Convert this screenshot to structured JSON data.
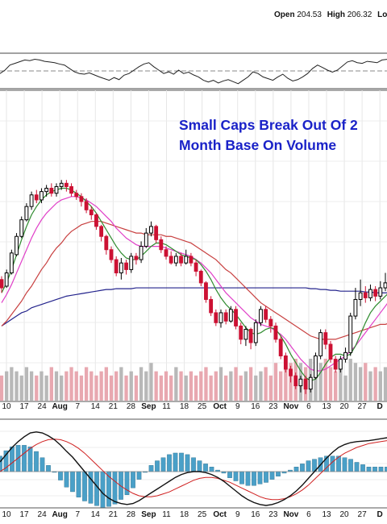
{
  "header": {
    "open_label": "Open",
    "open_value": "204.53",
    "high_label": "High",
    "high_value": "206.32",
    "low_label": "Lo"
  },
  "annotation": {
    "line1": "Small Caps Break Out Of 2",
    "line2": "Month Base On Volume"
  },
  "colors": {
    "up_candle": "#000000",
    "down_candle": "#cc1133",
    "ma_green": "#2e8b2e",
    "ma_magenta": "#e040c8",
    "ma_red": "#c84040",
    "ma_blue": "#23238c",
    "volume_up": "#b8b8b8",
    "volume_down": "#e8a8b0",
    "macd_hist": "#4aa0c8",
    "macd_line": "#111111",
    "signal_line": "#d02020",
    "annotation": "#1a22c8"
  },
  "chart_data": {
    "type": "candlestick",
    "x_ticks": [
      "10",
      "17",
      "24",
      "Aug",
      "7",
      "14",
      "21",
      "28",
      "Sep",
      "11",
      "18",
      "25",
      "Oct",
      "9",
      "16",
      "23",
      "Nov",
      "6",
      "13",
      "20",
      "27",
      "D"
    ],
    "month_tick_indices": [
      3,
      8,
      12,
      16,
      21
    ],
    "candles": [
      {
        "o": 1,
        "c": 0.5,
        "h": 1.2,
        "l": 0.2
      },
      {
        "o": 0.6,
        "c": 1.4,
        "h": 1.6,
        "l": 0.5
      },
      {
        "o": 1.4,
        "c": 2.6,
        "h": 2.8,
        "l": 1.3
      },
      {
        "o": 2.5,
        "c": 3.6,
        "h": 3.8,
        "l": 2.4
      },
      {
        "o": 3.6,
        "c": 4.6,
        "h": 4.8,
        "l": 3.5
      },
      {
        "o": 4.6,
        "c": 5.4,
        "h": 5.6,
        "l": 4.5
      },
      {
        "o": 5.4,
        "c": 6.1,
        "h": 6.3,
        "l": 5.2
      },
      {
        "o": 6.1,
        "c": 5.8,
        "h": 6.4,
        "l": 5.6
      },
      {
        "o": 5.8,
        "c": 6.3,
        "h": 6.5,
        "l": 5.6
      },
      {
        "o": 6.3,
        "c": 6.5,
        "h": 6.7,
        "l": 6
      },
      {
        "o": 6.5,
        "c": 6.2,
        "h": 6.8,
        "l": 6
      },
      {
        "o": 6.2,
        "c": 6.6,
        "h": 6.8,
        "l": 6
      },
      {
        "o": 6.6,
        "c": 6.8,
        "h": 7.0,
        "l": 6.4
      },
      {
        "o": 6.8,
        "c": 6.6,
        "h": 7.0,
        "l": 6.3
      },
      {
        "o": 6.6,
        "c": 6.2,
        "h": 6.8,
        "l": 6.0
      },
      {
        "o": 6.2,
        "c": 6.0,
        "h": 6.4,
        "l": 5.8
      },
      {
        "o": 6.0,
        "c": 5.7,
        "h": 6.2,
        "l": 5.4
      },
      {
        "o": 5.7,
        "c": 5.2,
        "h": 5.9,
        "l": 5.0
      },
      {
        "o": 5.2,
        "c": 4.9,
        "h": 5.4,
        "l": 4.6
      },
      {
        "o": 4.9,
        "c": 4.2,
        "h": 5.0,
        "l": 4.0
      },
      {
        "o": 4.2,
        "c": 3.6,
        "h": 4.3,
        "l": 3.3
      },
      {
        "o": 3.6,
        "c": 2.8,
        "h": 3.7,
        "l": 2.5
      },
      {
        "o": 2.8,
        "c": 2.2,
        "h": 3.0,
        "l": 2.0
      },
      {
        "o": 2.2,
        "c": 1.4,
        "h": 2.4,
        "l": 1.2
      },
      {
        "o": 1.4,
        "c": 2.0,
        "h": 2.3,
        "l": 1.0
      },
      {
        "o": 2.0,
        "c": 1.6,
        "h": 2.2,
        "l": 1.3
      },
      {
        "o": 1.6,
        "c": 2.4,
        "h": 2.6,
        "l": 1.4
      },
      {
        "o": 2.4,
        "c": 2.2,
        "h": 2.6,
        "l": 1.9
      },
      {
        "o": 2.2,
        "c": 3.0,
        "h": 3.3,
        "l": 2.0
      },
      {
        "o": 3.0,
        "c": 3.8,
        "h": 4.1,
        "l": 2.9
      },
      {
        "o": 3.8,
        "c": 4.2,
        "h": 4.5,
        "l": 3.6
      },
      {
        "o": 4.2,
        "c": 3.4,
        "h": 4.3,
        "l": 3.2
      },
      {
        "o": 3.4,
        "c": 2.8,
        "h": 3.6,
        "l": 2.6
      },
      {
        "o": 2.8,
        "c": 2.4,
        "h": 3.0,
        "l": 2.2
      },
      {
        "o": 2.4,
        "c": 2.0,
        "h": 2.7,
        "l": 1.9
      },
      {
        "o": 2.0,
        "c": 2.4,
        "h": 2.6,
        "l": 1.8
      },
      {
        "o": 2.4,
        "c": 2.0,
        "h": 2.6,
        "l": 1.8
      },
      {
        "o": 2.0,
        "c": 2.4,
        "h": 2.8,
        "l": 1.9
      },
      {
        "o": 2.4,
        "c": 2.0,
        "h": 2.6,
        "l": 1.8
      },
      {
        "o": 2.0,
        "c": 1.5,
        "h": 2.2,
        "l": 1.2
      },
      {
        "o": 1.5,
        "c": 0.8,
        "h": 1.6,
        "l": 0.6
      },
      {
        "o": 0.8,
        "c": -0.2,
        "h": 0.9,
        "l": -0.4
      },
      {
        "o": -0.2,
        "c": -1.0,
        "h": 0,
        "l": -1.2
      },
      {
        "o": -1.0,
        "c": -1.6,
        "h": -0.8,
        "l": -1.8
      },
      {
        "o": -1.6,
        "c": -1.0,
        "h": -0.8,
        "l": -1.9
      },
      {
        "o": -1.0,
        "c": -1.5,
        "h": -0.8,
        "l": -1.7
      },
      {
        "o": -1.5,
        "c": -0.8,
        "h": -0.6,
        "l": -1.6
      },
      {
        "o": -0.8,
        "c": -1.8,
        "h": -0.6,
        "l": -2.0
      },
      {
        "o": -1.8,
        "c": -2.6,
        "h": -1.6,
        "l": -2.9
      },
      {
        "o": -2.6,
        "c": -2.0,
        "h": -1.8,
        "l": -3.0
      },
      {
        "o": -2.0,
        "c": -2.8,
        "h": -1.9,
        "l": -3.2
      },
      {
        "o": -2.8,
        "c": -1.6,
        "h": -1.4,
        "l": -3.0
      },
      {
        "o": -1.6,
        "c": -0.8,
        "h": -0.6,
        "l": -1.8
      },
      {
        "o": -0.8,
        "c": -1.4,
        "h": -0.6,
        "l": -1.6
      },
      {
        "o": -1.4,
        "c": -1.8,
        "h": -1.2,
        "l": -2.2
      },
      {
        "o": -1.8,
        "c": -2.6,
        "h": -1.6,
        "l": -2.8
      },
      {
        "o": -2.6,
        "c": -3.6,
        "h": -2.4,
        "l": -3.8
      },
      {
        "o": -3.6,
        "c": -4.4,
        "h": -3.4,
        "l": -4.6
      },
      {
        "o": -4.4,
        "c": -4.8,
        "h": -4.2,
        "l": -5.2
      },
      {
        "o": -4.8,
        "c": -5.4,
        "h": -4.6,
        "l": -5.6
      },
      {
        "o": -5.4,
        "c": -5.0,
        "h": -4.8,
        "l": -5.8
      },
      {
        "o": -5.0,
        "c": -5.6,
        "h": -4.8,
        "l": -5.9
      },
      {
        "o": -5.6,
        "c": -4.9,
        "h": -4.7,
        "l": -5.8
      },
      {
        "o": -4.9,
        "c": -3.6,
        "h": -3.4,
        "l": -5.0
      },
      {
        "o": -3.6,
        "c": -2.2,
        "h": -2.0,
        "l": -3.8
      },
      {
        "o": -2.2,
        "c": -2.9,
        "h": -2.0,
        "l": -3.2
      },
      {
        "o": -2.9,
        "c": -3.8,
        "h": -2.7,
        "l": -4.0
      },
      {
        "o": -3.8,
        "c": -4.4,
        "h": -3.6,
        "l": -4.6
      },
      {
        "o": -4.4,
        "c": -3.8,
        "h": -3.6,
        "l": -4.6
      },
      {
        "o": -3.8,
        "c": -3.4,
        "h": -3.1,
        "l": -4.0
      },
      {
        "o": -3.4,
        "c": -1.2,
        "h": -1.0,
        "l": -3.6
      },
      {
        "o": -1.2,
        "c": -0.2,
        "h": 0.5,
        "l": -1.4
      },
      {
        "o": -0.2,
        "c": 0.2,
        "h": 1.0,
        "l": -0.6
      },
      {
        "o": 0.2,
        "c": -0.1,
        "h": 0.6,
        "l": -0.4
      },
      {
        "o": -0.1,
        "c": 0.4,
        "h": 0.7,
        "l": -0.3
      },
      {
        "o": 0.4,
        "c": 0.0,
        "h": 0.6,
        "l": -0.3
      },
      {
        "o": 0.0,
        "c": 0.5,
        "h": 0.9,
        "l": -0.2
      },
      {
        "o": 0.5,
        "c": 0.8,
        "h": 1.4,
        "l": 0.3
      }
    ],
    "ma_green": [
      0.2,
      0.8,
      1.6,
      2.5,
      3.4,
      4.2,
      4.9,
      5.4,
      5.8,
      6.1,
      6.3,
      6.4,
      6.5,
      6.5,
      6.4,
      6.2,
      6.0,
      5.7,
      5.4,
      5.0,
      4.5,
      4.0,
      3.5,
      3.0,
      2.6,
      2.3,
      2.2,
      2.2,
      2.4,
      2.7,
      3.0,
      3.2,
      3.2,
      3.1,
      2.9,
      2.7,
      2.5,
      2.4,
      2.3,
      2.2,
      1.9,
      1.5,
      1.0,
      0.4,
      -0.1,
      -0.5,
      -0.8,
      -1.1,
      -1.5,
      -1.9,
      -2.2,
      -2.3,
      -2.2,
      -2.0,
      -1.9,
      -2.0,
      -2.4,
      -2.9,
      -3.5,
      -4.0,
      -4.5,
      -4.9,
      -5.1,
      -5.0,
      -4.6,
      -4.1,
      -3.7,
      -3.5,
      -3.5,
      -3.6,
      -3.5,
      -3.0,
      -2.3,
      -1.6,
      -1.0,
      -0.6,
      -0.3,
      0.0,
      0.3
    ],
    "ma_magenta": [
      -0.4,
      0.1,
      0.7,
      1.4,
      2.1,
      2.8,
      3.5,
      4.1,
      4.6,
      5.0,
      5.3,
      5.6,
      5.8,
      5.9,
      6.0,
      6.0,
      5.9,
      5.8,
      5.6,
      5.4,
      5.1,
      4.8,
      4.5,
      4.1,
      3.8,
      3.5,
      3.3,
      3.1,
      3.0,
      3.0,
      3.0,
      3.0,
      3.0,
      2.9,
      2.8,
      2.7,
      2.6,
      2.5,
      2.4,
      2.2,
      2.0,
      1.7,
      1.4,
      1.0,
      0.6,
      0.2,
      -0.1,
      -0.4,
      -0.7,
      -1.0,
      -1.3,
      -1.5,
      -1.7,
      -1.8,
      -1.9,
      -2.1,
      -2.3,
      -2.6,
      -3.0,
      -3.4,
      -3.8,
      -4.1,
      -4.4,
      -4.5,
      -4.5,
      -4.4,
      -4.2,
      -4.0,
      -3.8,
      -3.6,
      -3.3,
      -3.0,
      -2.6,
      -2.2,
      -1.8,
      -1.4,
      -1.0,
      -0.6,
      -0.2
    ],
    "ma_red": [
      -1.8,
      -1.5,
      -1.1,
      -0.7,
      -0.3,
      0.2,
      0.6,
      1.1,
      1.6,
      2.0,
      2.5,
      2.9,
      3.2,
      3.6,
      3.9,
      4.1,
      4.3,
      4.4,
      4.5,
      4.5,
      4.5,
      4.4,
      4.3,
      4.2,
      4.1,
      4.0,
      3.9,
      3.8,
      3.8,
      3.7,
      3.7,
      3.7,
      3.7,
      3.6,
      3.6,
      3.5,
      3.4,
      3.3,
      3.2,
      3.0,
      2.8,
      2.6,
      2.4,
      2.2,
      1.9,
      1.6,
      1.4,
      1.1,
      0.8,
      0.5,
      0.2,
      -0.1,
      -0.4,
      -0.6,
      -0.8,
      -1.0,
      -1.2,
      -1.4,
      -1.6,
      -1.8,
      -2.0,
      -2.2,
      -2.4,
      -2.5,
      -2.6,
      -2.6,
      -2.6,
      -2.6,
      -2.5,
      -2.4,
      -2.3,
      -2.2,
      -2.1,
      -2.0,
      -1.9,
      -1.8,
      -1.7,
      -1.7,
      -1.6
    ],
    "ma_blue": [
      -1.8,
      -1.6,
      -1.4,
      -1.2,
      -1.0,
      -0.9,
      -0.7,
      -0.6,
      -0.5,
      -0.4,
      -0.3,
      -0.2,
      -0.1,
      0,
      0.05,
      0.1,
      0.15,
      0.2,
      0.25,
      0.3,
      0.35,
      0.4,
      0.4,
      0.45,
      0.45,
      0.45,
      0.45,
      0.5,
      0.5,
      0.5,
      0.5,
      0.5,
      0.5,
      0.5,
      0.5,
      0.5,
      0.5,
      0.5,
      0.5,
      0.5,
      0.5,
      0.5,
      0.5,
      0.5,
      0.5,
      0.5,
      0.5,
      0.5,
      0.5,
      0.5,
      0.5,
      0.5,
      0.5,
      0.5,
      0.5,
      0.5,
      0.5,
      0.5,
      0.5,
      0.5,
      0.5,
      0.5,
      0.45,
      0.45,
      0.4,
      0.4,
      0.35,
      0.35,
      0.3,
      0.3,
      0.3,
      0.3,
      0.3,
      0.25,
      0.25,
      0.2,
      0.2,
      0.2,
      0.2
    ],
    "volume": [
      0.6,
      0.7,
      0.8,
      0.7,
      0.6,
      0.8,
      0.7,
      0.6,
      0.7,
      0.6,
      0.8,
      0.7,
      0.6,
      0.7,
      0.8,
      0.7,
      0.6,
      0.8,
      0.7,
      0.6,
      0.7,
      0.8,
      0.6,
      0.7,
      0.8,
      0.6,
      0.7,
      0.6,
      0.8,
      0.7,
      0.9,
      0.7,
      0.6,
      0.7,
      0.6,
      0.8,
      0.7,
      0.6,
      0.7,
      0.6,
      0.7,
      0.8,
      0.6,
      0.7,
      0.8,
      0.6,
      0.7,
      0.8,
      0.6,
      0.7,
      0.8,
      0.6,
      0.7,
      0.8,
      0.6,
      0.9,
      0.7,
      0.8,
      0.9,
      1.0,
      0.9,
      0.8,
      1.0,
      0.8,
      0.9,
      1.0,
      0.8,
      0.7,
      0.8,
      0.6,
      1.0,
      0.9,
      0.8,
      0.9,
      0.7,
      0.8,
      0.7,
      0.8,
      0.9
    ],
    "rsi": [
      0.4,
      0.5,
      0.65,
      0.7,
      0.75,
      0.8,
      0.78,
      0.82,
      0.8,
      0.76,
      0.74,
      0.72,
      0.68,
      0.65,
      0.55,
      0.45,
      0.4,
      0.38,
      0.42,
      0.36,
      0.3,
      0.25,
      0.2,
      0.28,
      0.22,
      0.35,
      0.4,
      0.5,
      0.6,
      0.68,
      0.72,
      0.6,
      0.5,
      0.4,
      0.45,
      0.38,
      0.5,
      0.4,
      0.44,
      0.36,
      0.3,
      0.2,
      0.15,
      0.2,
      0.12,
      0.18,
      0.22,
      0.16,
      0.1,
      0.2,
      0.3,
      0.45,
      0.4,
      0.3,
      0.25,
      0.2,
      0.3,
      0.38,
      0.26,
      0.18,
      0.22,
      0.3,
      0.4,
      0.55,
      0.65,
      0.58,
      0.5,
      0.44,
      0.5,
      0.62,
      0.74,
      0.78,
      0.72,
      0.7,
      0.76,
      0.74,
      0.72,
      0.8,
      0.82
    ],
    "macd": [
      0.2,
      0.35,
      0.5,
      0.62,
      0.72,
      0.8,
      0.82,
      0.8,
      0.74,
      0.66,
      0.55,
      0.42,
      0.3,
      0.15,
      0.0,
      -0.15,
      -0.3,
      -0.45,
      -0.55,
      -0.62,
      -0.66,
      -0.68,
      -0.66,
      -0.6,
      -0.52,
      -0.44,
      -0.36,
      -0.28,
      -0.2,
      -0.12,
      -0.06,
      -0.02,
      0.0,
      0.0,
      -0.02,
      -0.06,
      -0.12,
      -0.2,
      -0.3,
      -0.4,
      -0.5,
      -0.58,
      -0.64,
      -0.68,
      -0.7,
      -0.68,
      -0.64,
      -0.58,
      -0.5,
      -0.4,
      -0.28,
      -0.14,
      0.0,
      0.14,
      0.28,
      0.4,
      0.5,
      0.56,
      0.6,
      0.62,
      0.63,
      0.64,
      0.66,
      0.68,
      0.7
    ],
    "macd_signal": [
      0.0,
      0.08,
      0.18,
      0.28,
      0.38,
      0.48,
      0.56,
      0.62,
      0.66,
      0.67,
      0.66,
      0.62,
      0.56,
      0.48,
      0.38,
      0.26,
      0.14,
      0.02,
      -0.1,
      -0.2,
      -0.3,
      -0.38,
      -0.45,
      -0.5,
      -0.52,
      -0.52,
      -0.5,
      -0.46,
      -0.42,
      -0.36,
      -0.3,
      -0.24,
      -0.18,
      -0.14,
      -0.12,
      -0.12,
      -0.14,
      -0.18,
      -0.22,
      -0.28,
      -0.34,
      -0.4,
      -0.46,
      -0.52,
      -0.56,
      -0.58,
      -0.58,
      -0.56,
      -0.52,
      -0.46,
      -0.38,
      -0.28,
      -0.16,
      -0.04,
      0.08,
      0.2,
      0.3,
      0.38,
      0.44,
      0.5,
      0.54,
      0.58,
      0.6,
      0.62,
      0.64
    ]
  }
}
